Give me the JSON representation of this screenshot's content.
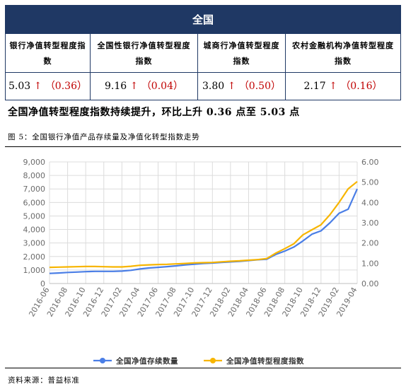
{
  "table": {
    "title": "全国",
    "columns": [
      {
        "header": "银行净值转型程度指数",
        "value": "5.03",
        "arrow": "↑",
        "change": "（0.36）"
      },
      {
        "header": "全国性银行净值转型程度指数",
        "value": "9.16",
        "arrow": "↑",
        "change": "（0.04）"
      },
      {
        "header": "城商行净值转型程度指数",
        "value": "3.80",
        "arrow": "↑",
        "change": "（0.50）"
      },
      {
        "header": "农村金融机构净值转型程度指数",
        "value": "2.17",
        "arrow": "↑",
        "change": "（0.16）"
      }
    ],
    "header_color": "#1f3864",
    "arrow_color": "#c00000"
  },
  "headline": "全国净值转型程度指数持续提升，环比上升 0.36 点至 5.03 点",
  "caption": "图 5：全国银行净值产品存续量及净值化转型指数走势",
  "source": "资料来源：普益标准",
  "chart_data": {
    "type": "line",
    "title": "",
    "x": [
      "2016-06",
      "2016-07",
      "2016-08",
      "2016-09",
      "2016-10",
      "2016-11",
      "2016-12",
      "2017-01",
      "2017-02",
      "2017-03",
      "2017-04",
      "2017-05",
      "2017-06",
      "2017-07",
      "2017-08",
      "2017-09",
      "2017-10",
      "2017-11",
      "2017-12",
      "2018-01",
      "2018-02",
      "2018-03",
      "2018-04",
      "2018-05",
      "2018-06",
      "2018-07",
      "2018-08",
      "2018-09",
      "2018-10",
      "2018-11",
      "2018-12",
      "2019-01",
      "2019-02",
      "2019-03",
      "2019-04"
    ],
    "x_tick_labels": [
      "2016-06",
      "2016-08",
      "2016-10",
      "2016-12",
      "2017-02",
      "2017-04",
      "2017-06",
      "2017-08",
      "2017-10",
      "2017-12",
      "2018-02",
      "2018-04",
      "2018-06",
      "2018-08",
      "2018-10",
      "2018-12",
      "2019-02",
      "2019-04"
    ],
    "y_left": {
      "min": 0,
      "max": 9000,
      "ticks": [
        "0",
        "1,000",
        "2,000",
        "3,000",
        "4,000",
        "5,000",
        "6,000",
        "7,000",
        "8,000",
        "9,000"
      ]
    },
    "y_right": {
      "min": 0,
      "max": 6,
      "ticks": [
        "0.00",
        "1.00",
        "2.00",
        "3.00",
        "4.00",
        "5.00",
        "6.00"
      ]
    },
    "grid": true,
    "legend_position": "bottom",
    "series": [
      {
        "name": "全国净值存续数量",
        "axis": "left",
        "color": "#4a7ee6",
        "values": [
          750,
          780,
          820,
          850,
          880,
          900,
          900,
          900,
          920,
          980,
          1080,
          1150,
          1200,
          1250,
          1310,
          1380,
          1430,
          1480,
          1520,
          1560,
          1600,
          1640,
          1700,
          1760,
          1800,
          2150,
          2400,
          2700,
          3150,
          3650,
          3900,
          4500,
          5200,
          5500,
          7000
        ]
      },
      {
        "name": "全国净值转型程度指数",
        "axis": "right",
        "color": "#f7b500",
        "values": [
          0.8,
          0.81,
          0.82,
          0.83,
          0.84,
          0.84,
          0.83,
          0.82,
          0.82,
          0.85,
          0.9,
          0.92,
          0.94,
          0.95,
          0.97,
          0.99,
          1.02,
          1.03,
          1.04,
          1.07,
          1.1,
          1.12,
          1.15,
          1.18,
          1.23,
          1.5,
          1.72,
          1.96,
          2.4,
          2.65,
          2.9,
          3.4,
          4.0,
          4.67,
          5.03
        ]
      }
    ]
  }
}
